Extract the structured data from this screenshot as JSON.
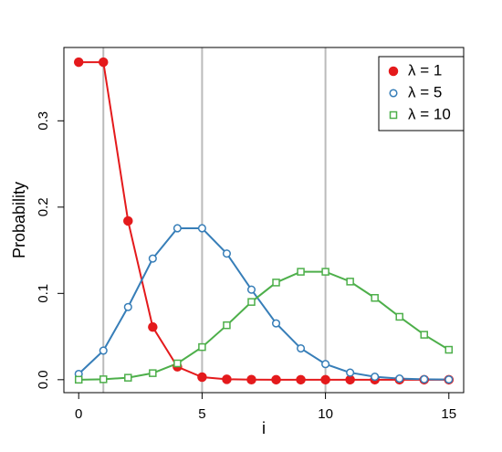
{
  "chart_data": {
    "type": "line",
    "xlabel": "i",
    "ylabel": "Probability",
    "x": [
      0,
      1,
      2,
      3,
      4,
      5,
      6,
      7,
      8,
      9,
      10,
      11,
      12,
      13,
      14,
      15
    ],
    "xlim": [
      -0.6,
      15.6
    ],
    "xticks": [
      0,
      5,
      10,
      15
    ],
    "ylim": [
      -0.015,
      0.385
    ],
    "yticks": [
      {
        "value": 0,
        "label": "0.0"
      },
      0.1,
      0.2,
      0.3
    ],
    "vlines": [
      1,
      5,
      10
    ],
    "legend": "top-right",
    "series": [
      {
        "name": "λ = 1",
        "color": "#e41a1c",
        "marker": "filled-circle",
        "values": [
          0.368,
          0.368,
          0.184,
          0.061,
          0.015,
          0.003,
          0.0005,
          0.0001,
          0,
          0,
          0,
          0,
          0,
          0,
          0,
          0
        ]
      },
      {
        "name": "λ = 5",
        "color": "#377eb8",
        "marker": "open-circle",
        "values": [
          0.0067,
          0.0337,
          0.0842,
          0.1404,
          0.1755,
          0.1755,
          0.1462,
          0.1044,
          0.0653,
          0.0363,
          0.0181,
          0.0082,
          0.0034,
          0.0013,
          0.0005,
          0.0002
        ]
      },
      {
        "name": "λ = 10",
        "color": "#4daf4a",
        "marker": "open-square",
        "values": [
          0.0,
          0.0005,
          0.0023,
          0.0076,
          0.0189,
          0.0378,
          0.0631,
          0.0901,
          0.1126,
          0.1251,
          0.1251,
          0.1137,
          0.0948,
          0.0729,
          0.0521,
          0.0347
        ]
      }
    ]
  }
}
